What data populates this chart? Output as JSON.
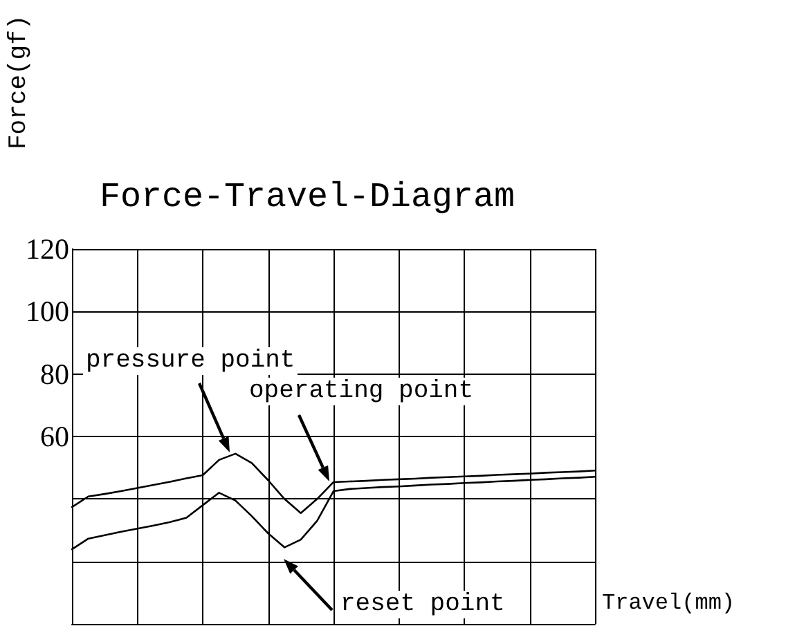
{
  "chart_data": {
    "type": "line",
    "title": "Force-Travel-Diagram",
    "xlabel": "Travel(mm)",
    "ylabel": "Force(gf)",
    "categories": [
      null,
      null,
      null,
      null,
      null,
      null,
      null,
      null,
      null,
      null,
      null,
      null,
      null,
      null,
      null,
      null,
      null,
      null,
      null,
      null,
      null,
      null,
      null,
      null,
      null,
      null,
      null,
      null,
      null,
      null,
      null,
      null,
      null
    ],
    "series": [
      {
        "color": "#000000",
        "values": [
          37.4,
          40.8,
          41.6,
          42.5,
          43.5,
          44.5,
          45.5,
          46.6,
          47.6,
          52.5,
          54.5,
          51.5,
          46,
          40,
          35.5,
          40,
          45.4,
          45.6,
          45.8,
          46.1,
          46.3,
          46.5,
          46.8,
          47,
          47.2,
          47.4,
          47.7,
          47.9,
          48.1,
          48.4,
          48.6,
          48.8,
          49.1
        ]
      },
      {
        "color": "#000000",
        "values": [
          23.9,
          27.3,
          28.4,
          29.5,
          30.5,
          31.5,
          32.6,
          34,
          38,
          42,
          39.5,
          34.5,
          29,
          24.5,
          27,
          33,
          42.5,
          43.2,
          43.5,
          43.8,
          44,
          44.3,
          44.6,
          44.8,
          45.1,
          45.3,
          45.6,
          45.8,
          46.1,
          46.3,
          46.6,
          46.8,
          47.1
        ]
      }
    ],
    "ylim": [
      0,
      120
    ],
    "yticks": [
      {
        "value": 0,
        "label": null
      },
      {
        "value": 20,
        "label": null
      },
      {
        "value": 40,
        "label": null
      },
      60,
      80,
      100,
      120
    ],
    "annotations": [
      "pressure point",
      "operating point",
      "reset point"
    ],
    "grid": true,
    "marker": "none",
    "line_style": "solid"
  }
}
